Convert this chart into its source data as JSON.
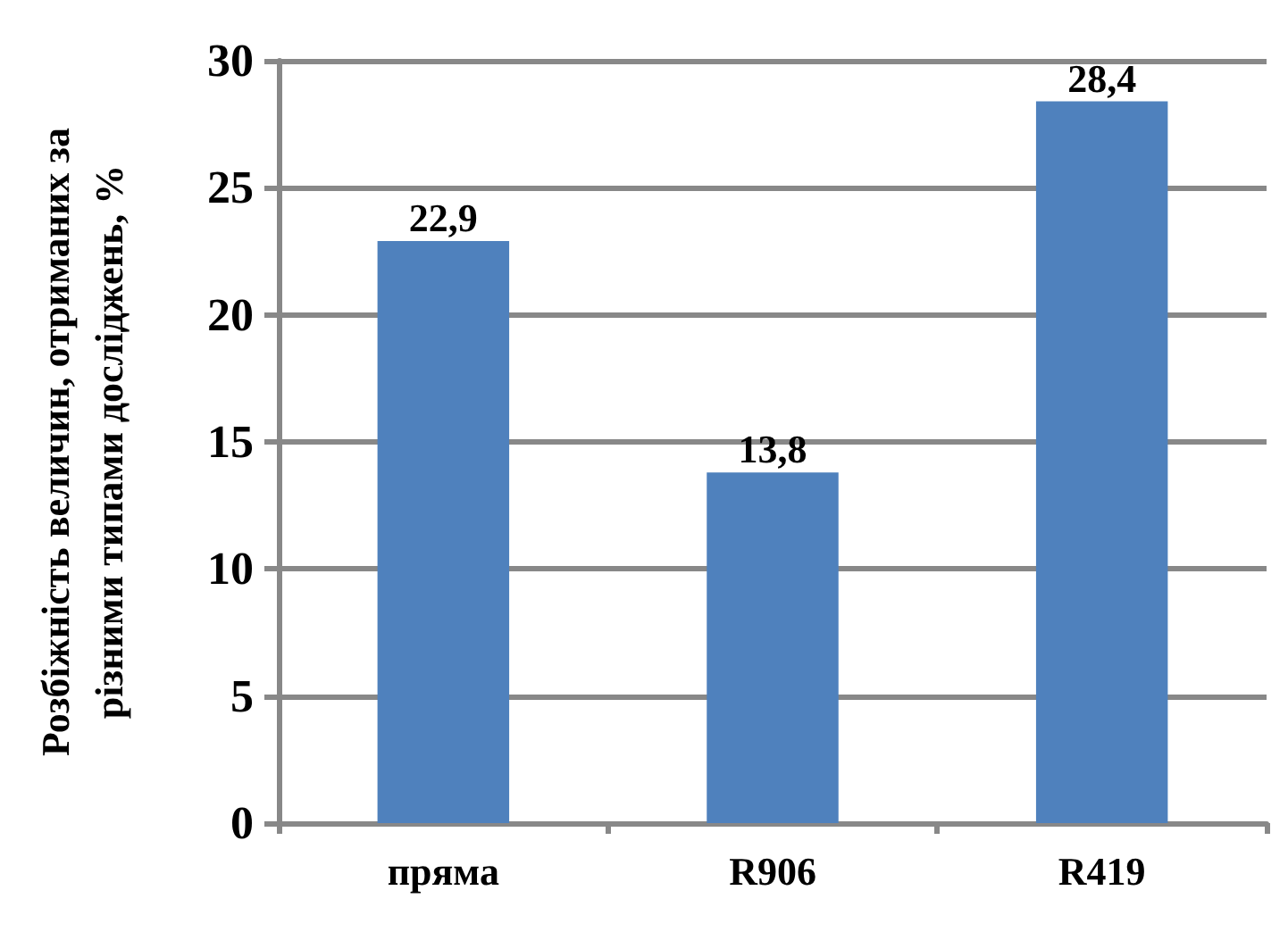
{
  "chart_data": {
    "type": "bar",
    "ylabel": "Розбіжність величин, отриманих за\nрізними типами досліджень, %",
    "categories": [
      "пряма",
      "R906",
      "R419"
    ],
    "values": [
      22.9,
      13.8,
      28.4
    ],
    "value_labels": [
      "22,9",
      "13,8",
      "28,4"
    ],
    "color": "#4f81bd",
    "ylim": [
      0,
      30
    ],
    "yticks": [
      0,
      5,
      10,
      15,
      20,
      25,
      30
    ],
    "grid": true
  }
}
